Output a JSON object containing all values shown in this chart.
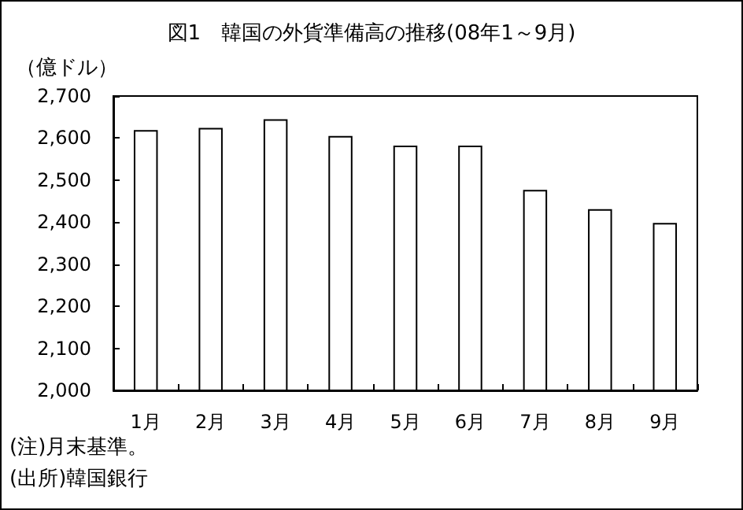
{
  "chart_data": {
    "type": "bar",
    "title": "図1　韓国の外貨準備高の推移(08年1～9月)",
    "ylabel": "（億ドル）",
    "categories": [
      "1月",
      "2月",
      "3月",
      "4月",
      "5月",
      "6月",
      "7月",
      "8月",
      "9月"
    ],
    "values": [
      2619,
      2624,
      2645,
      2605,
      2582,
      2582,
      2477,
      2431,
      2398
    ],
    "color": "#ffffff",
    "ylim": [
      2000,
      2700
    ],
    "yticks": [
      {
        "value": 2000,
        "label": "2,000"
      },
      {
        "value": 2100,
        "label": "2,100"
      },
      {
        "value": 2200,
        "label": "2,200"
      },
      {
        "value": 2300,
        "label": "2,300"
      },
      {
        "value": 2400,
        "label": "2,400"
      },
      {
        "value": 2500,
        "label": "2,500"
      },
      {
        "value": 2600,
        "label": "2,600"
      },
      {
        "value": 2700,
        "label": "2,700"
      }
    ],
    "grid": false,
    "annotations": [
      "(注)月末基準。",
      "(出所)韓国銀行"
    ]
  }
}
